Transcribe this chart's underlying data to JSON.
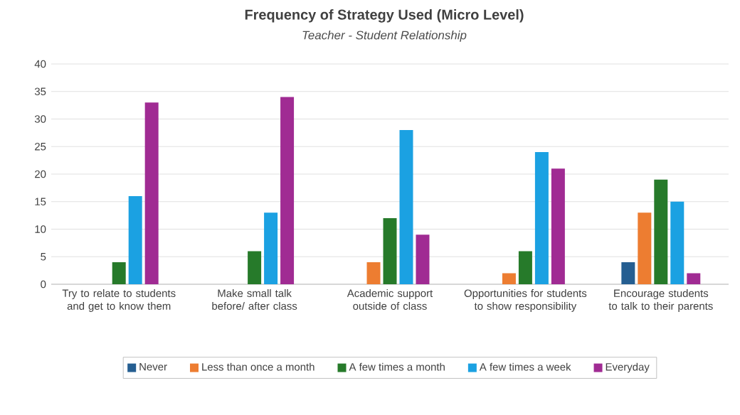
{
  "chart_data": {
    "type": "bar",
    "title": "Frequency of Strategy Used (Micro Level)",
    "subtitle": "Teacher - Student Relationship",
    "categories": [
      "Try to relate to students and get to know them",
      "Make small talk before/ after class",
      "Academic support outside of class",
      "Opportunities for students to show responsibility",
      "Encourage students to talk to their parents"
    ],
    "series": [
      {
        "name": "Never",
        "color": "#255e91",
        "values": [
          0,
          0,
          0,
          0,
          4
        ]
      },
      {
        "name": "Less than once a month",
        "color": "#ed7d31",
        "values": [
          0,
          0,
          4,
          2,
          13
        ]
      },
      {
        "name": "A few times a month",
        "color": "#267a2a",
        "values": [
          4,
          6,
          12,
          6,
          19
        ]
      },
      {
        "name": "A few times a week",
        "color": "#1ba1e2",
        "values": [
          16,
          13,
          28,
          24,
          15
        ]
      },
      {
        "name": "Everyday",
        "color": "#a02b93",
        "values": [
          33,
          34,
          9,
          21,
          2
        ]
      }
    ],
    "ylim": [
      0,
      40
    ],
    "yticks": [
      0,
      5,
      10,
      15,
      20,
      25,
      30,
      35,
      40
    ],
    "grid": "y",
    "legend": "bottom"
  }
}
